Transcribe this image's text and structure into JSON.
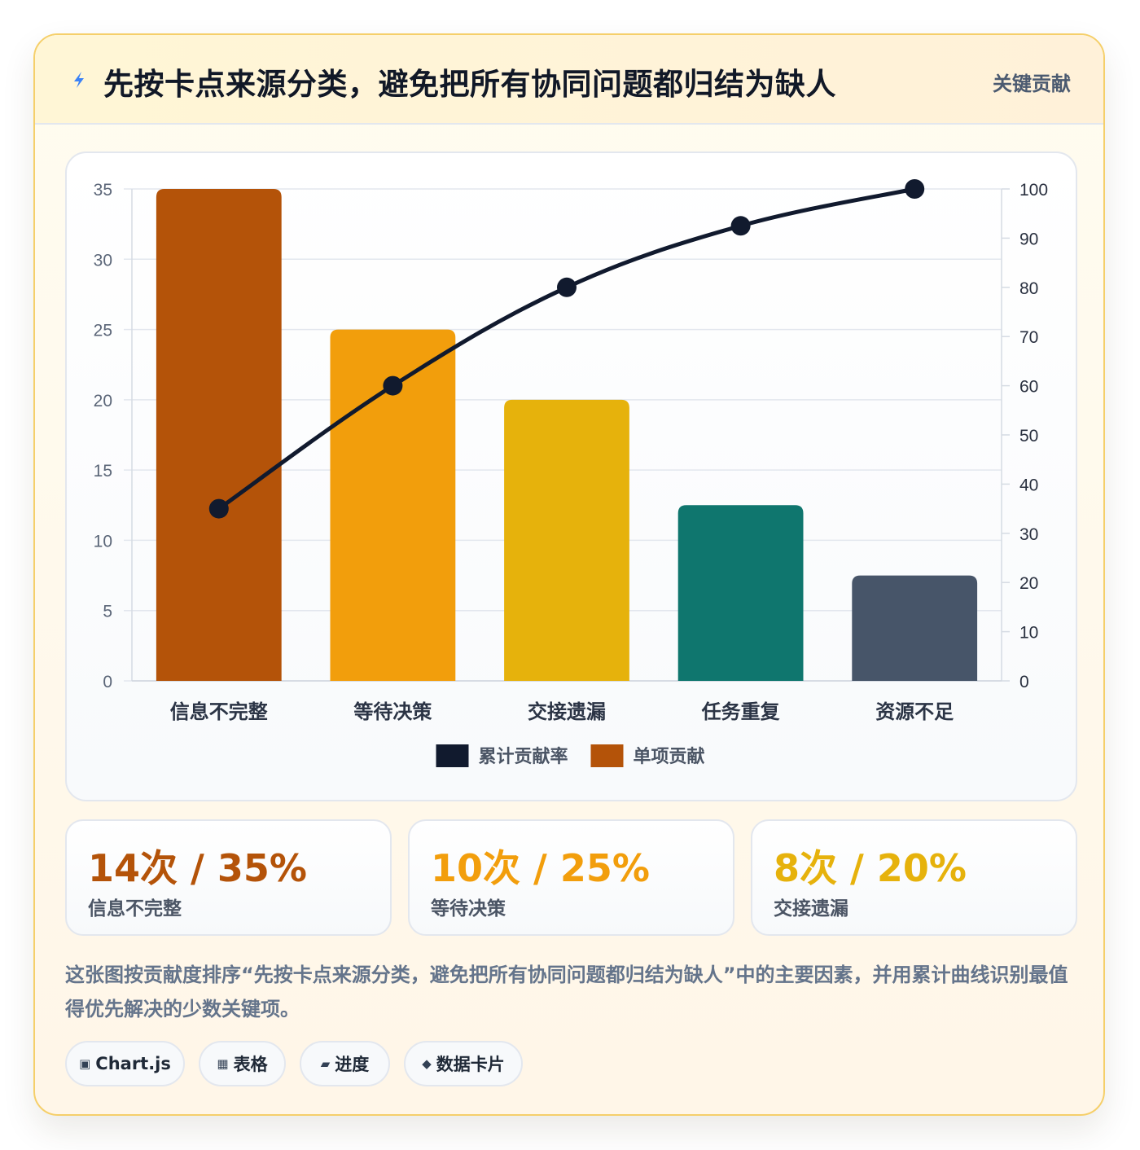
{
  "header": {
    "title": "先按卡点来源分类，避免把所有协同问题都归结为缺人",
    "tag": "关键贡献",
    "icon": "lightning-bolt-icon"
  },
  "chart_data": {
    "type": "bar",
    "categories": [
      "信息不完整",
      "等待决策",
      "交接遗漏",
      "任务重复",
      "资源不足"
    ],
    "series": [
      {
        "name": "单项贡献",
        "type": "bar",
        "values": [
          35,
          25,
          20,
          12.5,
          7.5
        ],
        "axis": "left"
      },
      {
        "name": "累计贡献率",
        "type": "line",
        "values": [
          35,
          60,
          80,
          92.5,
          100
        ],
        "axis": "right"
      }
    ],
    "bar_colors": [
      "#b45309",
      "#f29e0c",
      "#e6b20c",
      "#0f766e",
      "#475569"
    ],
    "line_color": "#111a2e",
    "ylim": [
      0,
      35
    ],
    "yticks": [
      0,
      5,
      10,
      15,
      20,
      25,
      30,
      35
    ],
    "y2lim": [
      0,
      100
    ],
    "y2ticks": [
      0,
      10,
      20,
      30,
      40,
      50,
      60,
      70,
      80,
      90,
      100
    ],
    "legend": [
      {
        "label": "累计贡献率",
        "color": "#111a2e"
      },
      {
        "label": "单项贡献",
        "color": "#b45309"
      }
    ],
    "legend_position": "bottom",
    "grid": true
  },
  "stats": [
    {
      "value": "14次 / 35%",
      "label": "信息不完整",
      "color": "#b45309"
    },
    {
      "value": "10次 / 25%",
      "label": "等待决策",
      "color": "#f29e0c"
    },
    {
      "value": "8次 / 20%",
      "label": "交接遗漏",
      "color": "#e6b20c"
    }
  ],
  "description": "这张图按贡献度排序“先按卡点来源分类，避免把所有协同问题都归结为缺人”中的主要因素，并用累计曲线识别最值得优先解决的少数关键项。",
  "chips": [
    {
      "icon": "▣",
      "label": "Chart.js"
    },
    {
      "icon": "▦",
      "label": "表格"
    },
    {
      "icon": "▰",
      "label": "进度"
    },
    {
      "icon": "◆",
      "label": "数据卡片"
    }
  ]
}
